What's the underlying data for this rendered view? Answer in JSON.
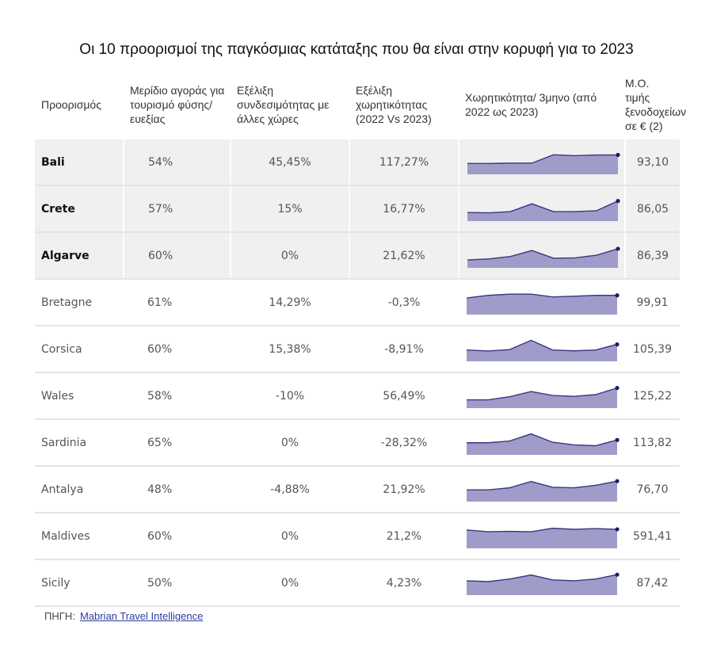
{
  "title": "Οι 10 προορισμοί της παγκόσμιας κατάταξης που θα είναι στην κορυφή για το 2023",
  "headers": {
    "destination": "Προορισμός",
    "market_share": "Μερίδιο αγοράς για τουρισμό φύσης/ευεξίας",
    "connectivity": "Εξέλιξη συνδεσιμότητας με άλλες χώρες",
    "capacity": "Εξέλιξη χωρητικότητας (2022 Vs 2023)",
    "capacity_quarterly": "Χωρητικότητα/ 3μηνο (από 2022 ως 2023)",
    "hotel_price": "Μ.Ο. τιμής ξενοδοχείων σε € (2)"
  },
  "colors": {
    "positive": "#5ebd7c",
    "negative": "#e07a5a",
    "sparkline_fill": "#a09cc9",
    "sparkline_line": "#3b3682",
    "highlight_row": "#f0f0f0",
    "link": "#2b3a9e"
  },
  "rows": [
    {
      "destination": "Bali",
      "highlight": true,
      "market_share": "54%",
      "connectivity": "45,45%",
      "connectivity_trend": "pos",
      "capacity": "117,27%",
      "capacity_trend": "pos",
      "hotel_price": "93,10",
      "sparkline": [
        0.35,
        0.35,
        0.37,
        0.37,
        0.85,
        0.8,
        0.84,
        0.84
      ]
    },
    {
      "destination": "Crete",
      "highlight": true,
      "market_share": "57%",
      "connectivity": "15%",
      "connectivity_trend": "pos",
      "capacity": "16,77%",
      "capacity_trend": "pos",
      "hotel_price": "86,05",
      "sparkline": [
        0.22,
        0.2,
        0.27,
        0.72,
        0.27,
        0.27,
        0.32,
        0.88
      ]
    },
    {
      "destination": "Algarve",
      "highlight": true,
      "market_share": "60%",
      "connectivity": "0%",
      "connectivity_trend": "neu",
      "capacity": "21,62%",
      "capacity_trend": "pos",
      "hotel_price": "86,39",
      "sparkline": [
        0.18,
        0.24,
        0.38,
        0.72,
        0.28,
        0.3,
        0.45,
        0.82
      ]
    },
    {
      "destination": "Bretagne",
      "highlight": false,
      "market_share": "61%",
      "connectivity": "14,29%",
      "connectivity_trend": "pos",
      "capacity": "-0,3%",
      "capacity_trend": "neg",
      "hotel_price": "99,91",
      "sparkline": [
        0.68,
        0.83,
        0.9,
        0.9,
        0.74,
        0.78,
        0.83,
        0.83
      ]
    },
    {
      "destination": "Corsica",
      "highlight": false,
      "market_share": "60%",
      "connectivity": "15,38%",
      "connectivity_trend": "pos",
      "capacity": "-8,91%",
      "capacity_trend": "neg",
      "hotel_price": "105,39",
      "sparkline": [
        0.38,
        0.32,
        0.4,
        0.93,
        0.38,
        0.33,
        0.38,
        0.7
      ]
    },
    {
      "destination": "Wales",
      "highlight": false,
      "market_share": "58%",
      "connectivity": "-10%",
      "connectivity_trend": "neg",
      "capacity": "56,49%",
      "capacity_trend": "pos",
      "hotel_price": "125,22",
      "sparkline": [
        0.2,
        0.2,
        0.38,
        0.68,
        0.45,
        0.4,
        0.5,
        0.88
      ]
    },
    {
      "destination": "Sardinia",
      "highlight": false,
      "market_share": "65%",
      "connectivity": "0%",
      "connectivity_trend": "neu",
      "capacity": "-28,32%",
      "capacity_trend": "neg",
      "hotel_price": "113,82",
      "sparkline": [
        0.42,
        0.42,
        0.52,
        0.93,
        0.45,
        0.3,
        0.25,
        0.58
      ]
    },
    {
      "destination": "Antalya",
      "highlight": false,
      "market_share": "48%",
      "connectivity": "-4,88%",
      "connectivity_trend": "neg",
      "capacity": "21,92%",
      "capacity_trend": "pos",
      "hotel_price": "76,70",
      "sparkline": [
        0.4,
        0.4,
        0.52,
        0.88,
        0.55,
        0.52,
        0.66,
        0.9
      ]
    },
    {
      "destination": "Maldives",
      "highlight": false,
      "market_share": "60%",
      "connectivity": "0%",
      "connectivity_trend": "neu",
      "capacity": "21,2%",
      "capacity_trend": "pos",
      "hotel_price": "591,41",
      "sparkline": [
        0.78,
        0.68,
        0.7,
        0.68,
        0.88,
        0.82,
        0.86,
        0.82
      ]
    },
    {
      "destination": "Sicily",
      "highlight": false,
      "market_share": "50%",
      "connectivity": "0%",
      "connectivity_trend": "neu",
      "capacity": "4,23%",
      "capacity_trend": "pos",
      "hotel_price": "87,42",
      "sparkline": [
        0.55,
        0.5,
        0.65,
        0.88,
        0.6,
        0.55,
        0.65,
        0.9
      ]
    }
  ],
  "source": {
    "label": "ΠΗΓΗ:",
    "link_text": "Mabrian Travel Intelligence"
  },
  "chart_data": {
    "type": "table",
    "title": "Οι 10 προορισμοί της παγκόσμιας κατάταξης που θα είναι στην κορυφή για το 2023",
    "columns": [
      "Προορισμός",
      "Μερίδιο αγοράς για τουρισμό φύσης/ευεξίας",
      "Εξέλιξη συνδεσιμότητας με άλλες χώρες",
      "Εξέλιξη χωρητικότητας (2022 Vs 2023)",
      "Χωρητικότητα/ 3μηνο (από 2022 ως 2023)",
      "Μ.Ο. τιμής ξενοδοχείων σε € (2)"
    ],
    "rows": [
      [
        "Bali",
        "54%",
        "45,45%",
        "117,27%",
        "sparkline",
        "93,10"
      ],
      [
        "Crete",
        "57%",
        "15%",
        "16,77%",
        "sparkline",
        "86,05"
      ],
      [
        "Algarve",
        "60%",
        "0%",
        "21,62%",
        "sparkline",
        "86,39"
      ],
      [
        "Bretagne",
        "61%",
        "14,29%",
        "-0,3%",
        "sparkline",
        "99,91"
      ],
      [
        "Corsica",
        "60%",
        "15,38%",
        "-8,91%",
        "sparkline",
        "105,39"
      ],
      [
        "Wales",
        "58%",
        "-10%",
        "56,49%",
        "sparkline",
        "125,22"
      ],
      [
        "Sardinia",
        "65%",
        "0%",
        "-28,32%",
        "sparkline",
        "113,82"
      ],
      [
        "Antalya",
        "48%",
        "-4,88%",
        "21,92%",
        "sparkline",
        "76,70"
      ],
      [
        "Maldives",
        "60%",
        "0%",
        "21,2%",
        "sparkline",
        "591,41"
      ],
      [
        "Sicily",
        "50%",
        "0%",
        "4,23%",
        "sparkline",
        "87,42"
      ]
    ],
    "sparkline_note": "Quarterly capacity (8 quarters, 2022–2023), relative values normalized 0–1 per row"
  }
}
